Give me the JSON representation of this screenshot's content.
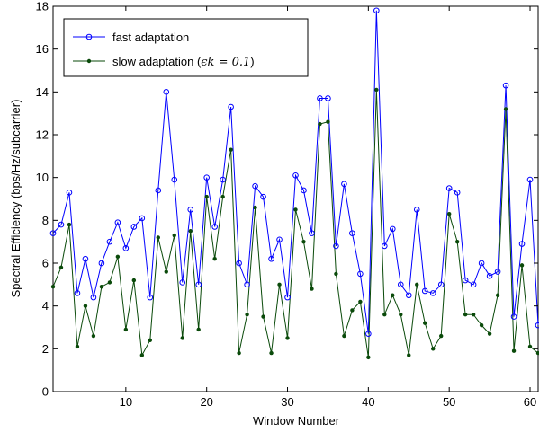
{
  "chart_data": {
    "type": "line",
    "xlabel": "Window Number",
    "ylabel": "Spectral Efficiency (bps/Hz/subcarrier)",
    "xlim": [
      1,
      61
    ],
    "ylim": [
      0,
      18
    ],
    "xticks": [
      10,
      20,
      30,
      40,
      50,
      60
    ],
    "yticks": [
      0,
      2,
      4,
      6,
      8,
      10,
      12,
      14,
      16,
      18
    ],
    "grid": false,
    "legend_position": "top-left",
    "x": [
      1,
      2,
      3,
      4,
      5,
      6,
      7,
      8,
      9,
      10,
      11,
      12,
      13,
      14,
      15,
      16,
      17,
      18,
      19,
      20,
      21,
      22,
      23,
      24,
      25,
      26,
      27,
      28,
      29,
      30,
      31,
      32,
      33,
      34,
      35,
      36,
      37,
      38,
      39,
      40,
      41,
      42,
      43,
      44,
      45,
      46,
      47,
      48,
      49,
      50,
      51,
      52,
      53,
      54,
      55,
      56,
      57,
      58,
      59,
      60,
      61
    ],
    "series": [
      {
        "name": "fast adaptation",
        "color": "#0000ff",
        "marker": "open-circle",
        "values": [
          7.4,
          7.8,
          9.3,
          4.6,
          6.2,
          4.4,
          6.0,
          7.0,
          7.9,
          6.7,
          7.7,
          8.1,
          4.4,
          9.4,
          14.0,
          9.9,
          5.1,
          8.5,
          5.0,
          10.0,
          7.7,
          9.9,
          13.3,
          6.0,
          5.0,
          9.6,
          9.1,
          6.2,
          7.1,
          4.4,
          10.1,
          9.4,
          7.4,
          13.7,
          13.7,
          6.8,
          9.7,
          7.4,
          5.5,
          2.7,
          17.8,
          6.8,
          7.6,
          5.0,
          4.5,
          8.5,
          4.7,
          4.6,
          5.0,
          9.5,
          9.3,
          5.2,
          5.0,
          6.0,
          5.4,
          5.6,
          14.3,
          3.5,
          6.9,
          9.9,
          3.1
        ]
      },
      {
        "name": "slow adaptation (ε_k = 0.1)",
        "name_prefix": "slow adaptation (",
        "name_suffix": ")",
        "name_math": "ϵk = 0.1",
        "color": "#0a4a0a",
        "marker": "filled-dot",
        "values": [
          4.9,
          5.8,
          7.8,
          2.1,
          4.0,
          2.6,
          4.9,
          5.1,
          6.3,
          2.9,
          5.2,
          1.7,
          2.4,
          7.2,
          5.6,
          7.3,
          2.5,
          7.5,
          2.9,
          9.1,
          6.2,
          9.1,
          11.3,
          1.8,
          3.6,
          8.6,
          3.5,
          1.8,
          5.0,
          2.5,
          8.5,
          7.0,
          4.8,
          12.5,
          12.6,
          5.5,
          2.6,
          3.8,
          4.2,
          1.6,
          14.1,
          3.6,
          4.5,
          3.6,
          1.7,
          5.0,
          3.2,
          2.0,
          2.6,
          8.3,
          7.0,
          3.6,
          3.6,
          3.1,
          2.7,
          4.5,
          13.2,
          1.9,
          5.9,
          2.1,
          1.8
        ]
      }
    ]
  }
}
